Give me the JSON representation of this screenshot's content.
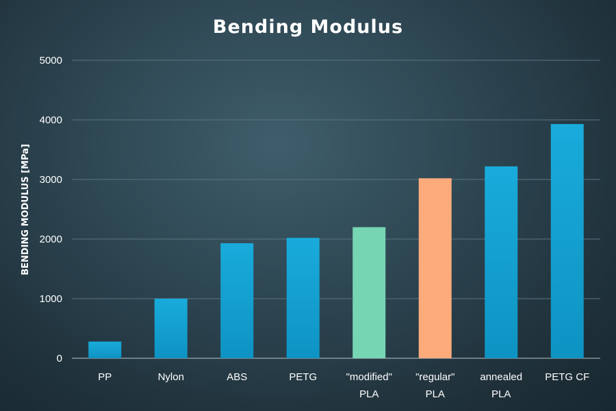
{
  "chart_data": {
    "type": "bar",
    "title": "Bending Modulus",
    "ylabel": "BENDING MODULUS [MPa]",
    "xlabel": "",
    "ylim": [
      0,
      5000
    ],
    "yticks": [
      0,
      1000,
      2000,
      3000,
      4000,
      5000
    ],
    "grid": true,
    "legend": "none",
    "categories": [
      [
        "PP"
      ],
      [
        "Nylon"
      ],
      [
        "ABS"
      ],
      [
        "PETG"
      ],
      [
        "\"modified\"",
        "PLA"
      ],
      [
        "\"regular\"",
        "PLA"
      ],
      [
        "annealed",
        "PLA"
      ],
      [
        "PETG CF"
      ]
    ],
    "values": [
      280,
      1000,
      1930,
      2020,
      2200,
      3020,
      3220,
      3930
    ],
    "colors": {
      "default": "#12a2d2",
      "highlight_green": "#76d5b3",
      "highlight_orange": "#fdab7b",
      "grid": "#5c7480",
      "text": "#ffffff"
    },
    "bar_colors": [
      "#12a2d2",
      "#12a2d2",
      "#12a2d2",
      "#12a2d2",
      "#76d5b3",
      "#fdab7b",
      "#12a2d2",
      "#12a2d2"
    ]
  }
}
